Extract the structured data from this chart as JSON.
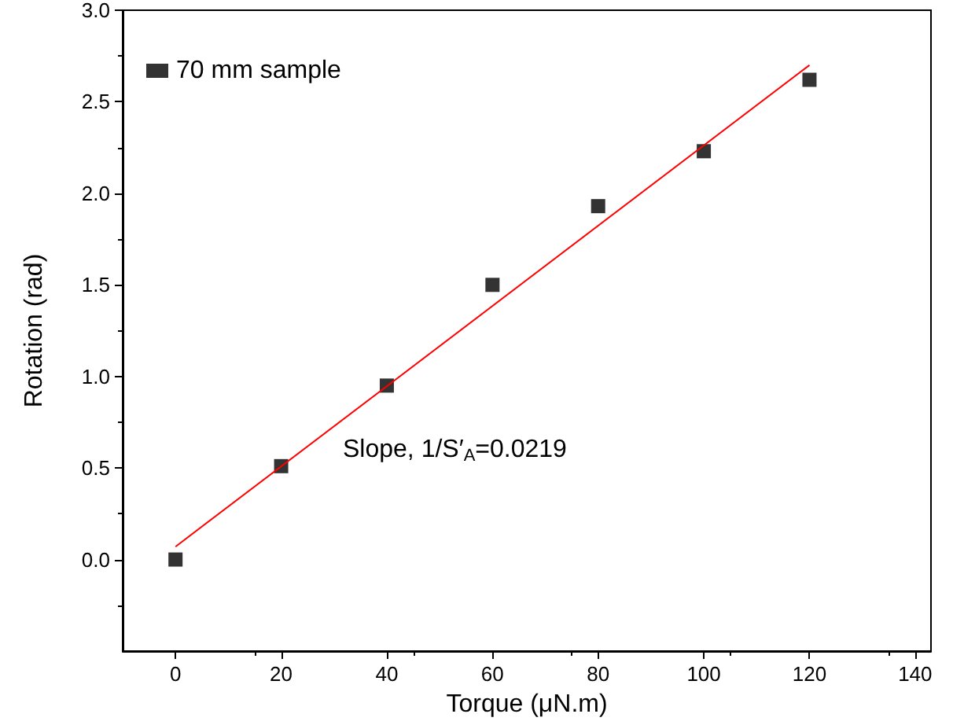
{
  "chart_data": {
    "type": "scatter",
    "xlabel": "Torque (μN.m)",
    "ylabel": "Rotation (rad)",
    "xlim": [
      -10,
      143
    ],
    "xticks": [
      0,
      20,
      40,
      60,
      80,
      100,
      120,
      140
    ],
    "ylim": [
      -0.5,
      3.0
    ],
    "yticks": [
      {
        "value": 0,
        "label": "0.0"
      },
      0.5,
      {
        "value": 1,
        "label": "1.0"
      },
      1.5,
      {
        "value": 2,
        "label": "2.0"
      },
      2.5,
      {
        "value": 3,
        "label": "3.0"
      }
    ],
    "grid": false,
    "legend": "top left",
    "annotations": [
      "Slope, 1/S′$_{A}$=0.0219"
    ],
    "series": [
      {
        "name": "70 mm sample",
        "marker": "square",
        "color": "#000000",
        "x": [
          0,
          20,
          40,
          60,
          80,
          100,
          120
        ],
        "values": [
          0.0,
          0.51,
          0.95,
          1.5,
          1.93,
          2.23,
          2.62
        ]
      },
      {
        "type": "line",
        "marker": "none",
        "line_style": "solid",
        "color": "#ff0000",
        "x": [
          0,
          120
        ],
        "values": [
          0.07,
          2.7
        ]
      }
    ]
  }
}
